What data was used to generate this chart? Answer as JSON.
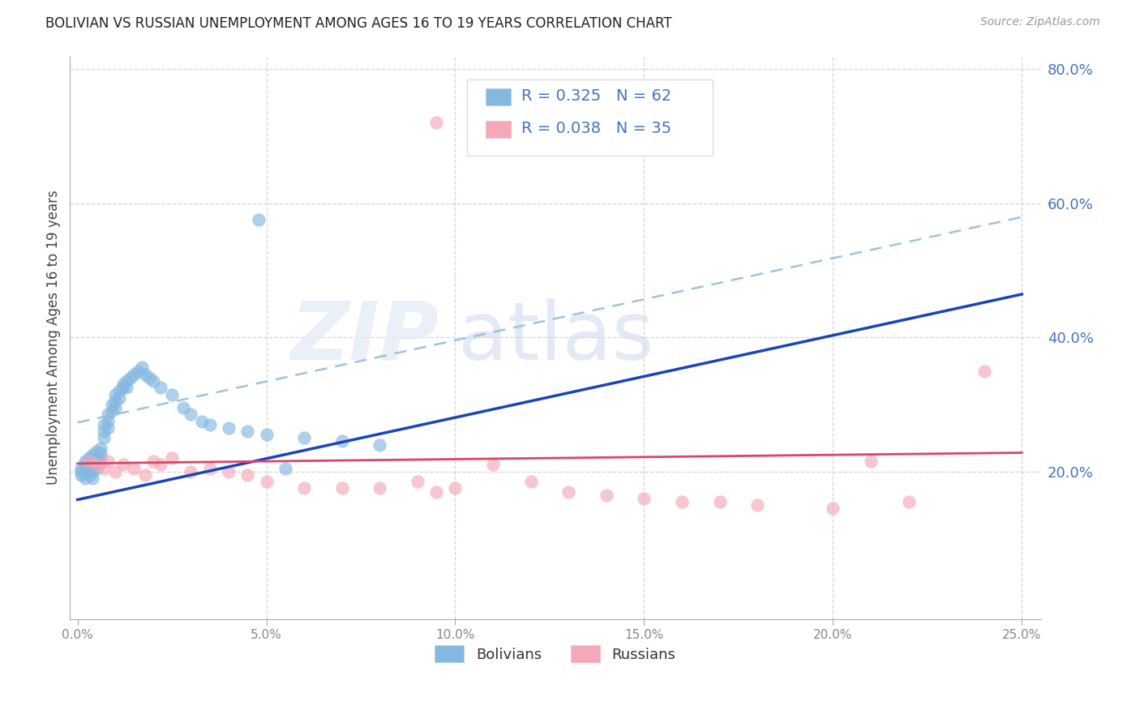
{
  "title": "BOLIVIAN VS RUSSIAN UNEMPLOYMENT AMONG AGES 16 TO 19 YEARS CORRELATION CHART",
  "source": "Source: ZipAtlas.com",
  "ylabel": "Unemployment Among Ages 16 to 19 years",
  "xlim": [
    -0.002,
    0.255
  ],
  "ylim": [
    -0.02,
    0.82
  ],
  "ytick_vals": [
    0.2,
    0.4,
    0.6,
    0.8
  ],
  "ytick_labels": [
    "20.0%",
    "40.0%",
    "60.0%",
    "80.0%"
  ],
  "xtick_vals": [
    0.0,
    0.05,
    0.1,
    0.15,
    0.2,
    0.25
  ],
  "xtick_labels": [
    "0.0%",
    "5.0%",
    "10.0%",
    "15.0%",
    "20.0%",
    "25.0%"
  ],
  "bolivian_color": "#85b8e0",
  "russian_color": "#f5a8b8",
  "bolivian_trend_color": "#1a44bb",
  "russian_trend_color": "#dd4466",
  "dashed_color": "#90bedd",
  "background_color": "#ffffff",
  "grid_color": "#cccccc",
  "axis_label_color": "#4472c4",
  "title_color": "#222222",
  "source_color": "#999999",
  "bolivian_R": 0.325,
  "russian_R": 0.038,
  "bolivian_N": 62,
  "russian_N": 35,
  "bx": [
    0.001,
    0.001,
    0.001,
    0.002,
    0.002,
    0.002,
    0.002,
    0.003,
    0.003,
    0.003,
    0.003,
    0.004,
    0.004,
    0.004,
    0.004,
    0.004,
    0.005,
    0.005,
    0.005,
    0.005,
    0.006,
    0.006,
    0.006,
    0.006,
    0.007,
    0.007,
    0.007,
    0.008,
    0.008,
    0.008,
    0.009,
    0.009,
    0.01,
    0.01,
    0.01,
    0.011,
    0.011,
    0.012,
    0.012,
    0.013,
    0.013,
    0.014,
    0.015,
    0.016,
    0.017,
    0.018,
    0.019,
    0.02,
    0.022,
    0.025,
    0.028,
    0.03,
    0.033,
    0.035,
    0.04,
    0.045,
    0.05,
    0.06,
    0.07,
    0.08,
    0.048,
    0.055
  ],
  "by": [
    0.2,
    0.205,
    0.195,
    0.215,
    0.21,
    0.2,
    0.19,
    0.22,
    0.215,
    0.205,
    0.195,
    0.225,
    0.218,
    0.21,
    0.2,
    0.19,
    0.23,
    0.222,
    0.215,
    0.205,
    0.235,
    0.228,
    0.22,
    0.212,
    0.27,
    0.26,
    0.25,
    0.285,
    0.275,
    0.265,
    0.3,
    0.29,
    0.315,
    0.305,
    0.295,
    0.32,
    0.31,
    0.33,
    0.325,
    0.335,
    0.325,
    0.34,
    0.345,
    0.35,
    0.355,
    0.345,
    0.34,
    0.335,
    0.325,
    0.315,
    0.295,
    0.285,
    0.275,
    0.27,
    0.265,
    0.26,
    0.255,
    0.25,
    0.245,
    0.24,
    0.575,
    0.205
  ],
  "rx": [
    0.003,
    0.005,
    0.007,
    0.008,
    0.01,
    0.012,
    0.015,
    0.018,
    0.02,
    0.022,
    0.025,
    0.03,
    0.035,
    0.04,
    0.045,
    0.05,
    0.06,
    0.07,
    0.08,
    0.09,
    0.095,
    0.1,
    0.11,
    0.12,
    0.13,
    0.14,
    0.15,
    0.16,
    0.17,
    0.18,
    0.2,
    0.21,
    0.22,
    0.24,
    0.095
  ],
  "ry": [
    0.215,
    0.21,
    0.205,
    0.215,
    0.2,
    0.21,
    0.205,
    0.195,
    0.215,
    0.21,
    0.22,
    0.2,
    0.205,
    0.2,
    0.195,
    0.185,
    0.175,
    0.175,
    0.175,
    0.185,
    0.17,
    0.175,
    0.21,
    0.185,
    0.17,
    0.165,
    0.16,
    0.155,
    0.155,
    0.15,
    0.145,
    0.215,
    0.155,
    0.35,
    0.72
  ],
  "blue_trend_x0": 0.0,
  "blue_trend_y0": 0.158,
  "blue_trend_x1": 0.12,
  "blue_trend_y1": 0.305,
  "dash_trend_y_offset": 0.115,
  "pink_trend_x0": 0.0,
  "pink_trend_y0": 0.212,
  "pink_trend_x1": 0.25,
  "pink_trend_y1": 0.228
}
